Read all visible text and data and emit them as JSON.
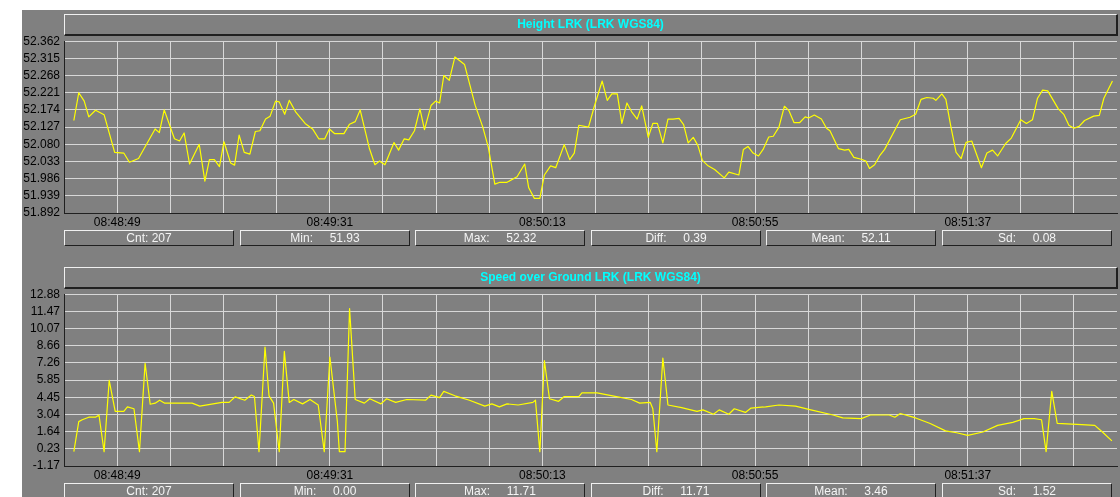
{
  "chart_data": [
    {
      "type": "line",
      "title": "Height LRK  (LRK WGS84)",
      "x": [
        8.81123,
        8.8115,
        8.8118,
        8.81205,
        8.81242,
        8.81289,
        8.81347,
        8.81397,
        8.81428,
        8.81478,
        8.81569,
        8.81592,
        8.81619,
        8.81675,
        8.81703,
        8.81728,
        8.81758,
        8.81811,
        8.81842,
        8.81867,
        8.81894,
        8.81922,
        8.81947,
        8.81983,
        8.82005,
        8.8203,
        8.82058,
        8.82089,
        8.82119,
        8.82144,
        8.82175,
        8.822,
        8.8223,
        8.8225,
        8.8228,
        8.82305,
        8.82342,
        8.82392,
        8.82433,
        8.82467,
        8.825,
        8.82525,
        8.82555,
        8.82605,
        8.82636,
        8.82667,
        8.82694,
        8.82744,
        8.82775,
        8.828,
        8.8283,
        8.8288,
        8.82905,
        8.82936,
        8.82961,
        8.82992,
        8.83022,
        8.83047,
        8.83083,
        8.83108,
        8.8313,
        8.83153,
        8.83183,
        8.83214,
        8.83267,
        8.83325,
        8.83367,
        8.83397,
        8.83433,
        8.83461,
        8.835,
        8.83555,
        8.83597,
        8.83619,
        8.8365,
        8.8368,
        8.83705,
        8.83739,
        8.83767,
        8.83814,
        8.83844,
        8.83869,
        8.83894,
        8.83947,
        8.83978,
        8.84022,
        8.8405,
        8.84075,
        8.84105,
        8.8413,
        8.84158,
        8.84186,
        8.84214,
        8.84239,
        8.84275,
        8.843,
        8.84325,
        8.84355,
        8.84383,
        8.84411,
        8.84444,
        8.84469,
        8.84494,
        8.84522,
        8.84547,
        8.84572,
        8.84603,
        8.84639,
        8.84692,
        8.84717,
        8.84772,
        8.84797,
        8.84822,
        8.8485,
        8.8488,
        8.84905,
        8.84936,
        8.84961,
        8.84992,
        8.85022,
        8.85047,
        8.85075,
        8.85105,
        8.85136,
        8.85155,
        8.85186,
        8.85225,
        8.85253,
        8.85272,
        8.85319,
        8.85353,
        8.85375,
        8.85403,
        8.85444,
        8.85469,
        8.85489,
        8.85517,
        8.85544,
        8.85572,
        8.85658,
        8.85711,
        8.85742,
        8.85772,
        8.85803,
        8.85839,
        8.85853,
        8.85886,
        8.85908,
        8.85936,
        8.85964,
        8.85992,
        8.86019,
        8.8605,
        8.86103,
        8.86133,
        8.86164,
        8.86192,
        8.86236,
        8.86267,
        8.86319,
        8.8635,
        8.86383,
        8.86411,
        8.86439,
        8.86467,
        8.86525,
        8.86555,
        8.86583,
        8.86611,
        8.86639,
        8.86669,
        8.86719,
        8.8675,
        8.86775,
        8.86822
      ],
      "series": [
        {
          "color": "#ffff00",
          "values": [
            52.145,
            52.221,
            52.198,
            52.155,
            52.173,
            52.161,
            52.058,
            52.056,
            52.031,
            52.041,
            52.122,
            52.112,
            52.174,
            52.095,
            52.089,
            52.111,
            52.026,
            52.08,
            51.979,
            52.038,
            52.038,
            52.019,
            52.087,
            52.029,
            52.023,
            52.105,
            52.058,
            52.053,
            52.115,
            52.117,
            52.149,
            52.157,
            52.198,
            52.196,
            52.162,
            52.2,
            52.167,
            52.137,
            52.122,
            52.095,
            52.095,
            52.122,
            52.109,
            52.109,
            52.135,
            52.142,
            52.174,
            52.07,
            52.024,
            52.034,
            52.024,
            52.085,
            52.064,
            52.095,
            52.092,
            52.117,
            52.177,
            52.12,
            52.186,
            52.198,
            52.193,
            52.268,
            52.255,
            52.319,
            52.298,
            52.187,
            52.127,
            52.072,
            51.971,
            51.976,
            51.976,
            51.991,
            52.026,
            51.961,
            51.932,
            51.932,
            51.996,
            52.021,
            52.016,
            52.079,
            52.038,
            52.056,
            52.132,
            52.127,
            52.182,
            52.253,
            52.2,
            52.218,
            52.218,
            52.137,
            52.193,
            52.167,
            52.149,
            52.185,
            52.099,
            52.137,
            52.137,
            52.084,
            52.149,
            52.149,
            52.151,
            52.134,
            52.084,
            52.099,
            52.077,
            52.036,
            52.021,
            52.011,
            51.988,
            52.004,
            51.996,
            52.066,
            52.074,
            52.056,
            52.048,
            52.066,
            52.1,
            52.102,
            52.127,
            52.184,
            52.172,
            52.139,
            52.139,
            52.155,
            52.152,
            52.16,
            52.149,
            52.124,
            52.117,
            52.068,
            52.064,
            52.066,
            52.044,
            52.039,
            52.034,
            52.014,
            52.024,
            52.048,
            52.066,
            52.147,
            52.154,
            52.162,
            52.203,
            52.208,
            52.206,
            52.2,
            52.218,
            52.203,
            52.127,
            52.058,
            52.041,
            52.085,
            52.089,
            52.016,
            52.056,
            52.064,
            52.048,
            52.082,
            52.097,
            52.147,
            52.137,
            52.147,
            52.206,
            52.228,
            52.226,
            52.177,
            52.162,
            52.132,
            52.124,
            52.129,
            52.145,
            52.157,
            52.159,
            52.206,
            52.253
          ]
        }
      ],
      "xlim": [
        8.81069,
        8.86847
      ],
      "xticks": [
        {
          "value": 8.81361,
          "label": "08:48:49"
        },
        {
          "value": 8.81653,
          "label": null
        },
        {
          "value": 8.81944,
          "label": null
        },
        {
          "value": 8.82236,
          "label": null
        },
        {
          "value": 8.82528,
          "label": "08:49:31"
        },
        {
          "value": 8.82819,
          "label": null
        },
        {
          "value": 8.83111,
          "label": null
        },
        {
          "value": 8.83403,
          "label": null
        },
        {
          "value": 8.83694,
          "label": "08:50:13"
        },
        {
          "value": 8.83986,
          "label": null
        },
        {
          "value": 8.84278,
          "label": null
        },
        {
          "value": 8.84569,
          "label": null
        },
        {
          "value": 8.84861,
          "label": "08:50:55"
        },
        {
          "value": 8.85153,
          "label": null
        },
        {
          "value": 8.85444,
          "label": null
        },
        {
          "value": 8.85736,
          "label": null
        },
        {
          "value": 8.86028,
          "label": "08:51:37"
        },
        {
          "value": 8.86319,
          "label": null
        },
        {
          "value": 8.86611,
          "label": null
        }
      ],
      "ylim": [
        51.892,
        52.362
      ],
      "yticks": [
        51.892,
        51.939,
        51.986,
        52.033,
        {
          "value": 52.08,
          "label": "52.080"
        },
        52.127,
        52.174,
        52.221,
        52.268,
        52.315,
        52.362
      ],
      "grid": true,
      "annotations": [
        "Cnt: 207",
        "Min:     51.93",
        "Max:     52.32",
        "Diff:     0.39",
        "Mean:     52.11",
        "Sd:     0.08"
      ]
    },
    {
      "type": "line",
      "title": "Speed over Ground LRK  (LRK WGS84)",
      "x": [
        8.81123,
        8.8115,
        8.81169,
        8.81205,
        8.81242,
        8.81261,
        8.81289,
        8.81317,
        8.8135,
        8.81397,
        8.81417,
        8.81453,
        8.81483,
        8.81514,
        8.81542,
        8.81569,
        8.81594,
        8.81622,
        8.81772,
        8.81814,
        8.81936,
        8.81975,
        8.82008,
        8.82061,
        8.82097,
        8.82114,
        8.82139,
        8.82172,
        8.82194,
        8.82219,
        8.8225,
        8.82278,
        8.82305,
        8.8233,
        8.82378,
        8.82419,
        8.82464,
        8.82497,
        8.82528,
        8.82569,
        8.8258,
        8.82611,
        8.82636,
        8.82667,
        8.82717,
        8.82747,
        8.82808,
        8.82839,
        8.82889,
        8.8295,
        8.83053,
        8.83083,
        8.8313,
        8.83153,
        8.83214,
        8.83294,
        8.83378,
        8.83417,
        8.83458,
        8.835,
        8.83561,
        8.83642,
        8.83656,
        8.8368,
        8.83705,
        8.83733,
        8.83783,
        8.83814,
        8.83864,
        8.83894,
        8.83911,
        8.83994,
        8.841,
        8.84183,
        8.84228,
        8.84286,
        8.843,
        8.84322,
        8.84355,
        8.84383,
        8.84458,
        8.84542,
        8.84575,
        8.84633,
        8.84664,
        8.84717,
        8.84747,
        8.84808,
        8.84839,
        8.84919,
        8.84992,
        8.85083,
        8.85167,
        8.85289,
        8.85342,
        8.85444,
        8.85494,
        8.85597,
        8.85628,
        8.85658,
        8.85742,
        8.85822,
        8.85906,
        8.85967,
        8.86028,
        8.86111,
        8.86192,
        8.86275,
        8.86336,
        8.86394,
        8.86433,
        8.86458,
        8.86489,
        8.86519,
        8.86653,
        8.86725,
        8.86767,
        8.86819
      ],
      "series": [
        {
          "color": "#ffff00",
          "values": [
            0,
            2.46,
            2.61,
            2.82,
            2.82,
            3.0,
            0,
            5.84,
            3.3,
            3.3,
            3.67,
            3.51,
            0,
            7.23,
            3.88,
            3.97,
            4.21,
            3.97,
            3.97,
            3.73,
            4.03,
            4.03,
            4.48,
            4.21,
            4.63,
            4.51,
            0,
            8.56,
            4.57,
            3.97,
            0,
            8.2,
            4.03,
            4.27,
            3.91,
            4.27,
            3.82,
            0,
            7.74,
            2.46,
            0,
            0,
            11.71,
            4.27,
            3.97,
            4.33,
            3.91,
            4.33,
            4.03,
            4.27,
            4.21,
            4.63,
            4.42,
            4.93,
            4.57,
            4.21,
            3.73,
            3.91,
            3.67,
            3.91,
            3.82,
            4.03,
            4.21,
            0,
            7.44,
            4.33,
            4.12,
            4.51,
            4.51,
            4.51,
            4.81,
            4.81,
            4.51,
            4.27,
            3.97,
            4.03,
            3.51,
            0,
            7.65,
            3.82,
            3.61,
            3.3,
            3.42,
            3.06,
            3.42,
            3.06,
            3.51,
            3.21,
            3.57,
            3.67,
            3.82,
            3.73,
            3.42,
            3.0,
            2.76,
            2.7,
            3.0,
            3.0,
            2.82,
            3.12,
            2.76,
            2.31,
            1.7,
            1.55,
            1.34,
            1.61,
            2.15,
            2.4,
            2.7,
            2.7,
            2.61,
            0,
            4.93,
            2.31,
            2.21,
            2.15,
            1.61,
            0.88
          ]
        }
      ],
      "xlim": [
        8.81069,
        8.86847
      ],
      "xticks": [
        {
          "value": 8.81361,
          "label": "08:48:49"
        },
        {
          "value": 8.81653,
          "label": null
        },
        {
          "value": 8.81944,
          "label": null
        },
        {
          "value": 8.82236,
          "label": null
        },
        {
          "value": 8.82528,
          "label": "08:49:31"
        },
        {
          "value": 8.82819,
          "label": null
        },
        {
          "value": 8.83111,
          "label": null
        },
        {
          "value": 8.83403,
          "label": null
        },
        {
          "value": 8.83694,
          "label": "08:50:13"
        },
        {
          "value": 8.83986,
          "label": null
        },
        {
          "value": 8.84278,
          "label": null
        },
        {
          "value": 8.84569,
          "label": null
        },
        {
          "value": 8.84861,
          "label": "08:50:55"
        },
        {
          "value": 8.85153,
          "label": null
        },
        {
          "value": 8.85444,
          "label": null
        },
        {
          "value": 8.85736,
          "label": null
        },
        {
          "value": 8.86028,
          "label": "08:51:37"
        },
        {
          "value": 8.86319,
          "label": null
        },
        {
          "value": 8.86611,
          "label": null
        }
      ],
      "ylim": [
        -1.17,
        12.88
      ],
      "yticks": [
        -1.17,
        0.23,
        1.64,
        3.04,
        4.45,
        5.85,
        7.26,
        8.66,
        10.07,
        11.47,
        12.88
      ],
      "grid": true,
      "annotations": [
        "Cnt: 207",
        "Min:     0.00",
        "Max:     11.71",
        "Diff:     11.71",
        "Mean:     3.46",
        "Sd:     1.52"
      ]
    }
  ]
}
